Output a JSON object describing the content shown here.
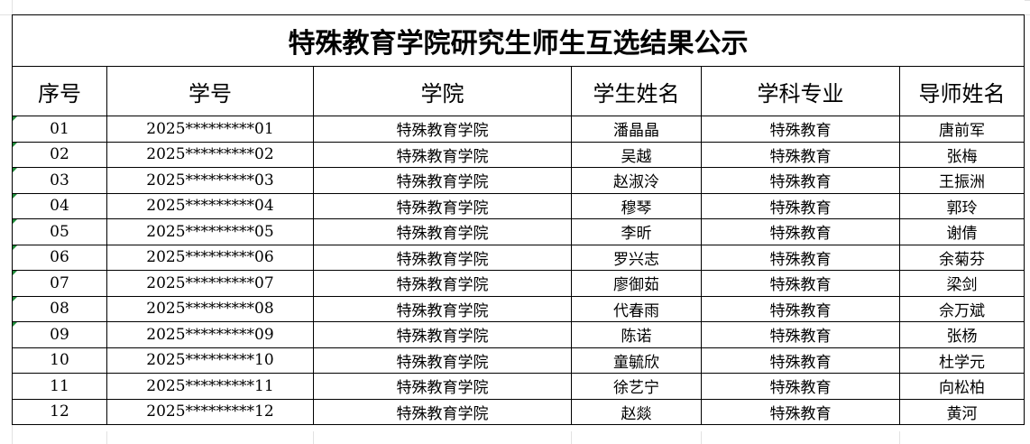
{
  "title": "特殊教育学院研究生师生互选结果公示",
  "headers": [
    "序号",
    "学号",
    "学院",
    "学生姓名",
    "学科专业",
    "导师姓名"
  ],
  "rows": [
    [
      "01",
      "2025*********01",
      "特殊教育学院",
      "潘晶晶",
      "特殊教育",
      "唐前军"
    ],
    [
      "02",
      "2025*********02",
      "特殊教育学院",
      "吴越",
      "特殊教育",
      "张梅"
    ],
    [
      "03",
      "2025*********03",
      "特殊教育学院",
      "赵淑泠",
      "特殊教育",
      "王振洲"
    ],
    [
      "04",
      "2025*********04",
      "特殊教育学院",
      "穆琴",
      "特殊教育",
      "郭玲"
    ],
    [
      "05",
      "2025*********05",
      "特殊教育学院",
      "李昕",
      "特殊教育",
      "谢倩"
    ],
    [
      "06",
      "2025*********06",
      "特殊教育学院",
      "罗兴志",
      "特殊教育",
      "余菊芬"
    ],
    [
      "07",
      "2025*********07",
      "特殊教育学院",
      "廖御茹",
      "特殊教育",
      "梁剑"
    ],
    [
      "08",
      "2025*********08",
      "特殊教育学院",
      "代春雨",
      "特殊教育",
      "佘万斌"
    ],
    [
      "09",
      "2025*********09",
      "特殊教育学院",
      "陈诺",
      "特殊教育",
      "张杨"
    ],
    [
      "10",
      "2025*********10",
      "特殊教育学院",
      "童毓欣",
      "特殊教育",
      "杜学元"
    ],
    [
      "11",
      "2025*********11",
      "特殊教育学院",
      "徐艺宁",
      "特殊教育",
      "向松柏"
    ],
    [
      "12",
      "2025*********12",
      "特殊教育学院",
      "赵燚",
      "特殊教育",
      "黄河"
    ]
  ],
  "colors": {
    "grid": "#e2e2e2",
    "border": "#000000",
    "error_marker": "#1f8a3a"
  }
}
